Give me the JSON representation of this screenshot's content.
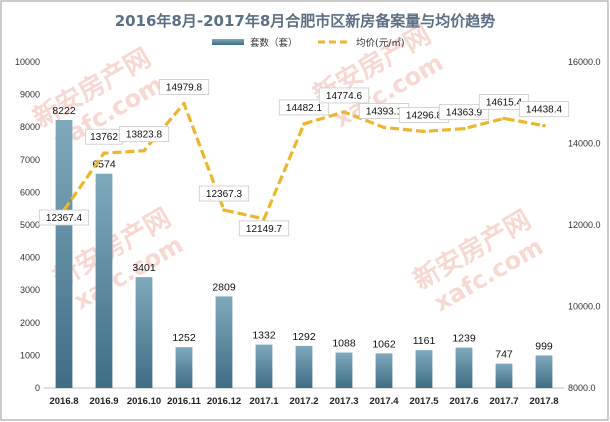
{
  "colors": {
    "bar_top": "#7fa9bd",
    "bar_bottom": "#3f6d84",
    "line": "#ecb62e",
    "border": "#a9a9a9",
    "watermark": "#f2b9ae"
  },
  "watermark": {
    "text_cn": "新安房产网",
    "text_en": "xafc.com"
  },
  "chart_data": {
    "type": "bar",
    "title": "2016年8月-2017年8月合肥市区新房备案量与均价趋势",
    "categories": [
      "2016.8",
      "2016.9",
      "2016.10",
      "2016.11",
      "2016.12",
      "2017.1",
      "2017.2",
      "2017.3",
      "2017.4",
      "2017.5",
      "2017.6",
      "2017.7",
      "2017.8"
    ],
    "series": [
      {
        "name": "套数（套）",
        "type": "bar",
        "axis": "left",
        "values": [
          8222,
          6574,
          3401,
          1252,
          2809,
          1332,
          1292,
          1088,
          1062,
          1161,
          1239,
          747,
          999
        ],
        "labels": [
          "8222",
          "6574",
          "3401",
          "1252",
          "2809",
          "1332",
          "1292",
          "1088",
          "1062",
          "1161",
          "1239",
          "747",
          "999"
        ]
      },
      {
        "name": "均价(元/㎡)",
        "type": "line",
        "axis": "right",
        "style": "dashed",
        "values": [
          12367.4,
          13762,
          13823.8,
          14979.8,
          12367.3,
          12149.7,
          14482.1,
          14774.6,
          14393.1,
          14296.8,
          14363.9,
          14615.4,
          14438.4
        ],
        "labels": [
          "12367.4",
          "13762",
          "13823.8",
          "14979.8",
          "12367.3",
          "12149.7",
          "14482.1",
          "14774.6",
          "14393.1",
          "14296.8",
          "14363.9",
          "14615.4",
          "14438.4"
        ]
      }
    ],
    "left_axis": {
      "ylim": [
        0,
        10000
      ],
      "ticks": [
        "0",
        "1000",
        "2000",
        "3000",
        "4000",
        "5000",
        "6000",
        "7000",
        "8000",
        "9000",
        "10000"
      ]
    },
    "right_axis": {
      "ylim": [
        8000,
        16000
      ],
      "ticks": [
        "8000.0",
        "10000.0",
        "12000.0",
        "14000.0",
        "16000.0"
      ]
    },
    "grid": false,
    "legend_position": "top-center"
  }
}
